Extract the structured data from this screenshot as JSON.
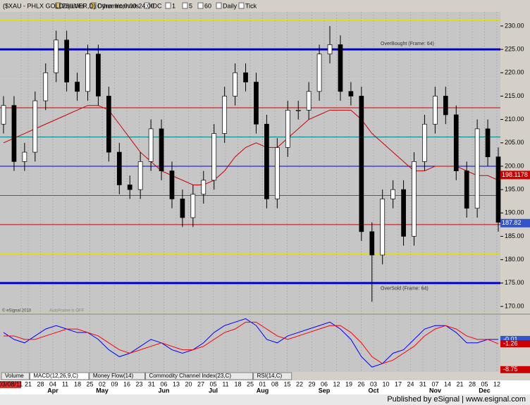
{
  "toolbar": {
    "items": [
      "Equities",
      "Other Intervals",
      "IDC",
      "1",
      "5",
      "60",
      "Daily",
      "Tick"
    ]
  },
  "chart_data": [
    {
      "type": "candlestick",
      "title": "($XAU - PHLX GOLD/SILVER,D) Dynamic,0:00-24:00",
      "open": [
        209,
        213,
        201,
        203,
        214,
        220,
        227,
        218,
        216,
        224,
        215,
        203,
        196,
        195,
        201,
        208,
        199,
        193,
        189,
        194,
        197,
        207,
        215,
        220,
        218,
        209,
        193,
        204,
        212,
        212,
        216,
        224,
        226,
        216,
        215,
        186,
        181,
        193,
        195,
        185,
        201,
        209,
        215,
        211,
        199,
        191,
        208,
        202
      ],
      "high": [
        215,
        215,
        205,
        216,
        222,
        229,
        229,
        220,
        226,
        226,
        217,
        205,
        198,
        203,
        210,
        210,
        201,
        195,
        196,
        199,
        209,
        217,
        222,
        222,
        220,
        211,
        206,
        214,
        214,
        218,
        226,
        230,
        228,
        218,
        217,
        188,
        195,
        197,
        197,
        203,
        211,
        217,
        217,
        213,
        201,
        210,
        210,
        204
      ],
      "low": [
        207,
        199,
        199,
        201,
        212,
        218,
        216,
        214,
        214,
        213,
        201,
        194,
        193,
        193,
        199,
        197,
        191,
        187,
        187,
        192,
        195,
        205,
        213,
        216,
        207,
        191,
        191,
        202,
        210,
        210,
        214,
        222,
        214,
        213,
        184,
        171,
        179,
        191,
        183,
        183,
        199,
        207,
        209,
        197,
        189,
        189,
        200,
        186
      ],
      "close": [
        213,
        201,
        203,
        214,
        220,
        227,
        218,
        216,
        224,
        215,
        203,
        196,
        195,
        201,
        208,
        199,
        193,
        189,
        194,
        197,
        207,
        215,
        220,
        218,
        209,
        193,
        204,
        212,
        212,
        216,
        224,
        226,
        216,
        215,
        186,
        181,
        193,
        195,
        185,
        201,
        209,
        215,
        211,
        199,
        191,
        208,
        202,
        188
      ],
      "up_color": "#ffffff",
      "down_color": "#000000",
      "ma": {
        "color": "#cc0000",
        "values": [
          205,
          206,
          207,
          208,
          209,
          210,
          211,
          212,
          213,
          213,
          212,
          209,
          206,
          203,
          201,
          199,
          198,
          197,
          196,
          196,
          197,
          199,
          202,
          204,
          205,
          204,
          204,
          206,
          208,
          210,
          211,
          212,
          212,
          212,
          210,
          207,
          205,
          203,
          201,
          199,
          199,
          200,
          200,
          200,
          199,
          198,
          198,
          197
        ]
      },
      "ylim": [
        168.5,
        233
      ],
      "yticks": [
        {
          "value": 170,
          "label": "170.00"
        },
        {
          "value": 175,
          "label": "175.00"
        },
        {
          "value": 180,
          "label": "180.00"
        },
        {
          "value": 185,
          "label": "185.00"
        },
        {
          "value": 190,
          "label": "190.00"
        },
        {
          "value": 195,
          "label": "195.00"
        },
        {
          "value": 200,
          "label": "200.00"
        },
        {
          "value": 205,
          "label": "205.00"
        },
        {
          "value": 210,
          "label": "210.00"
        },
        {
          "value": 215,
          "label": "215.00"
        },
        {
          "value": 220,
          "label": "220.00"
        },
        {
          "value": 225,
          "label": "225.00"
        },
        {
          "value": 230,
          "label": "230.00"
        }
      ],
      "levels": [
        {
          "value": 231.25,
          "color": "#e8e000",
          "width": 1
        },
        {
          "value": 225,
          "color": "#0000cc",
          "width": 3
        },
        {
          "value": 218.75,
          "color": "#e8e000",
          "width": 1
        },
        {
          "value": 212.5,
          "color": "#cc0000",
          "width": 1
        },
        {
          "value": 206.25,
          "color": "#008080",
          "width": 1
        },
        {
          "value": 200,
          "color": "#0000cc",
          "width": 1
        },
        {
          "value": 193.75,
          "color": "#008080",
          "width": 1
        },
        {
          "value": 187.5,
          "color": "#cc0000",
          "width": 1
        },
        {
          "value": 181.25,
          "color": "#e8e000",
          "width": 1
        },
        {
          "value": 175,
          "color": "#0000cc",
          "width": 3
        },
        {
          "value": 168.75,
          "color": "#e8e000",
          "width": 1
        }
      ],
      "annotations": [
        {
          "text": "OverBought (Frame: 64)",
          "value": 225
        },
        {
          "text": "OverSold (Frame: 64)",
          "value": 175
        }
      ],
      "price_tags": [
        {
          "value": 198.1178,
          "color": "#cc0000"
        },
        {
          "value": 187.82,
          "color": "#3355cc"
        }
      ],
      "copyright": "© eSignal 2010",
      "autoframe": "AutoFrame is OFF"
    },
    {
      "type": "line",
      "series": [
        {
          "color": "#0000ff",
          "values": [
            2,
            0,
            -1,
            1,
            3,
            4,
            3,
            2,
            2,
            0,
            -3,
            -5,
            -4,
            -2,
            0,
            -1,
            -3,
            -4,
            -3,
            -1,
            2,
            4,
            5,
            6,
            4,
            0,
            -1,
            1,
            2,
            3,
            4,
            5,
            3,
            0,
            -5,
            -8,
            -7,
            -4,
            -3,
            0,
            3,
            4,
            4,
            2,
            -1,
            -1,
            0,
            -0.01
          ]
        },
        {
          "color": "#ff0000",
          "values": [
            1,
            1,
            0,
            0,
            1,
            2,
            3,
            3,
            2,
            1,
            -1,
            -3,
            -4,
            -3,
            -2,
            -1,
            -2,
            -3,
            -3,
            -2,
            0,
            2,
            3,
            5,
            5,
            3,
            1,
            0,
            1,
            2,
            3,
            4,
            4,
            2,
            -1,
            -5,
            -7,
            -6,
            -4,
            -2,
            1,
            3,
            4,
            3,
            1,
            0,
            0,
            -1.26
          ]
        }
      ],
      "ylim": [
        -9.4,
        6.9
      ],
      "value_tags": [
        {
          "value": -0.01,
          "color": "#3355cc"
        },
        {
          "value": -1.26,
          "color": "#cc0000"
        },
        {
          "value": -8.75,
          "color": "#cc0000"
        }
      ]
    }
  ],
  "x_axis": {
    "labels": [
      "03/08/11",
      "21",
      "28",
      "04",
      "11",
      "18",
      "25",
      "02",
      "09",
      "16",
      "23",
      "31",
      "06",
      "13",
      "20",
      "27",
      "05",
      "11",
      "18",
      "25",
      "01",
      "08",
      "15",
      "22",
      "29",
      "06",
      "12",
      "19",
      "26",
      "03",
      "10",
      "17",
      "24",
      "31",
      "07",
      "14",
      "21",
      "28",
      "05",
      "12"
    ],
    "months": [
      "Apr",
      "May",
      "Jun",
      "Jul",
      "Aug",
      "Sep",
      "Oct",
      "Nov",
      "Dec"
    ]
  },
  "tabs": [
    "Volume",
    "MACD(12,26,9,C)",
    "Money Flow(14)",
    "Commodity Channel Index(23,C)",
    "RSI(14,C)"
  ],
  "footer": "Published by eSignal | www.esignal.com"
}
